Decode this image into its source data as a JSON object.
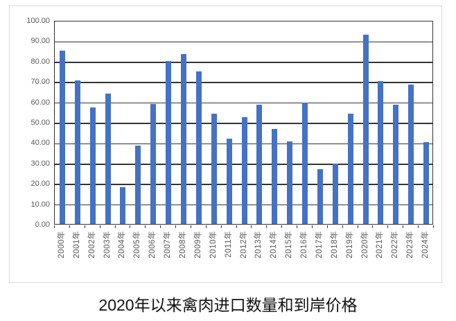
{
  "chart_data": {
    "type": "bar",
    "title": "2020年以来禽肉进口数量和到岸价格",
    "title_position": "below-chart",
    "categories": [
      "2000年",
      "2001年",
      "2002年",
      "2003年",
      "2004年",
      "2005年",
      "2006年",
      "2007年",
      "2008年",
      "2009年",
      "2010年",
      "2011年",
      "2012年",
      "2013年",
      "2014年",
      "2015年",
      "2016年",
      "2017年",
      "2018年",
      "2019年",
      "2020年",
      "2021年",
      "2022年",
      "2023年",
      "2024年"
    ],
    "values": [
      85,
      70.5,
      57,
      64,
      18,
      38.5,
      59,
      80,
      83.5,
      75,
      54,
      42,
      52.5,
      58.5,
      46.5,
      40.5,
      59.5,
      27,
      29.5,
      54,
      93,
      70,
      58.5,
      68.5,
      40
    ],
    "xlabel": "",
    "ylabel": "",
    "ylim": [
      0,
      100
    ],
    "y_tick_labels_top_to_bottom": [
      "100.00",
      "90.00",
      "80.00",
      "70.00",
      "60.00",
      "50.00",
      "40.00",
      "30.00",
      "20.00",
      "10.00",
      "0.00"
    ],
    "grid": true,
    "legend": "none",
    "bar_color": "#4472C4",
    "axis_label_color": "#595959",
    "gridline_color": "#333333"
  },
  "caption": {
    "text": "2020年以来禽肉进口数量和到岸价格"
  }
}
